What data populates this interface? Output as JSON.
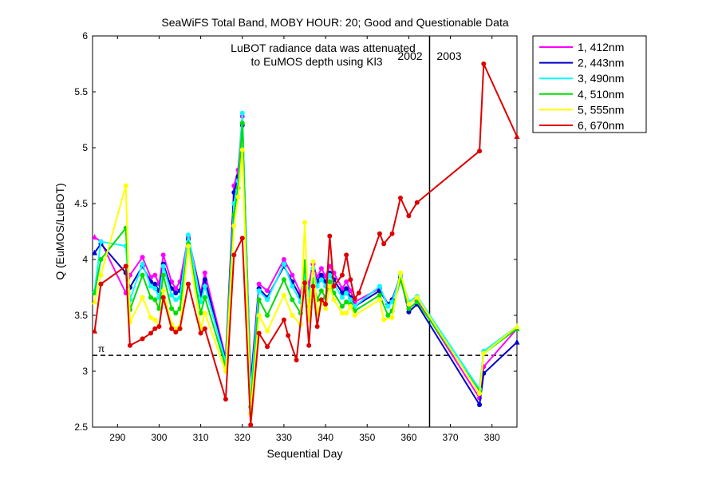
{
  "chart_data": {
    "type": "line",
    "title": "SeaWiFS Total Band,  MOBY HOUR: 20;  Good and Questionable Data",
    "xlabel": "Sequential Day",
    "ylabel": "Q (EuMOS/LuBOT)",
    "xlim": [
      284,
      386
    ],
    "ylim": [
      2.5,
      6
    ],
    "xticks": [
      290,
      300,
      310,
      320,
      330,
      340,
      350,
      360,
      370,
      380
    ],
    "yticks": [
      2.5,
      3,
      3.5,
      4,
      4.5,
      5,
      5.5,
      6
    ],
    "grid": false,
    "legend_position": "outside-top-right",
    "annotations": {
      "note_line1": "LuBOT radiance data was attenuated",
      "note_line2": "to EuMOS depth using Kl3",
      "year_left": "2002",
      "year_right": "2003",
      "pi_label": "π",
      "year_divider_x": 365,
      "pi_reference_y": 3.1416
    },
    "series": [
      {
        "name": "1, 412nm",
        "color": "#ff00ff",
        "points": [
          [
            284.5,
            4.2
          ],
          [
            286,
            4.16
          ],
          [
            292,
            3.7
          ],
          [
            293,
            3.86
          ],
          [
            296,
            4.02
          ],
          [
            298,
            3.84
          ],
          [
            299,
            3.86
          ],
          [
            300,
            3.78
          ],
          [
            301,
            4.04
          ],
          [
            303,
            3.8
          ],
          [
            304,
            3.74
          ],
          [
            305,
            3.8
          ],
          [
            307,
            4.2
          ],
          [
            310,
            3.7
          ],
          [
            311,
            3.88
          ],
          [
            316,
            3.12
          ],
          [
            318,
            4.66
          ],
          [
            319,
            4.8
          ],
          [
            320,
            5.28
          ],
          [
            322,
            2.9
          ],
          [
            324,
            3.78
          ],
          [
            326,
            3.72
          ],
          [
            330,
            4.0
          ],
          [
            332,
            3.86
          ],
          [
            334,
            3.7
          ],
          [
            335,
            3.88
          ],
          [
            336,
            3.78
          ],
          [
            337,
            3.96
          ],
          [
            338,
            3.84
          ],
          [
            339,
            3.92
          ],
          [
            340,
            3.85
          ],
          [
            341,
            3.94
          ],
          [
            342,
            3.88
          ],
          [
            344,
            3.74
          ],
          [
            345,
            3.8
          ],
          [
            346,
            3.72
          ],
          [
            347,
            3.62
          ],
          [
            353,
            3.74
          ],
          [
            355,
            3.6
          ],
          [
            356,
            3.64
          ],
          [
            358,
            3.86
          ],
          [
            360,
            3.62
          ],
          [
            362,
            3.64
          ],
          [
            377,
            2.76
          ],
          [
            378,
            3.04
          ],
          [
            386,
            3.38
          ]
        ]
      },
      {
        "name": "2, 443nm",
        "color": "#0000cc",
        "points": [
          [
            284.5,
            4.06
          ],
          [
            286,
            4.14
          ],
          [
            292,
            3.88
          ],
          [
            293,
            3.75
          ],
          [
            296,
            3.94
          ],
          [
            298,
            3.8
          ],
          [
            299,
            3.78
          ],
          [
            300,
            3.72
          ],
          [
            301,
            3.96
          ],
          [
            303,
            3.74
          ],
          [
            304,
            3.7
          ],
          [
            305,
            3.72
          ],
          [
            307,
            4.18
          ],
          [
            310,
            3.68
          ],
          [
            311,
            3.82
          ],
          [
            316,
            3.1
          ],
          [
            318,
            4.6
          ],
          [
            319,
            4.74
          ],
          [
            320,
            5.2
          ],
          [
            322,
            2.88
          ],
          [
            324,
            3.74
          ],
          [
            326,
            3.66
          ],
          [
            330,
            3.94
          ],
          [
            332,
            3.8
          ],
          [
            334,
            3.66
          ],
          [
            335,
            3.84
          ],
          [
            336,
            3.72
          ],
          [
            337,
            3.9
          ],
          [
            338,
            3.8
          ],
          [
            339,
            3.86
          ],
          [
            340,
            3.8
          ],
          [
            341,
            3.88
          ],
          [
            342,
            3.82
          ],
          [
            344,
            3.7
          ],
          [
            345,
            3.74
          ],
          [
            346,
            3.66
          ],
          [
            347,
            3.58
          ],
          [
            353,
            3.72
          ],
          [
            355,
            3.6
          ],
          [
            356,
            3.64
          ],
          [
            358,
            3.84
          ],
          [
            360,
            3.53
          ],
          [
            362,
            3.6
          ],
          [
            377,
            2.7
          ],
          [
            378,
            2.98
          ],
          [
            386,
            3.26
          ]
        ]
      },
      {
        "name": "3, 490nm",
        "color": "#00ffff",
        "points": [
          [
            284.5,
            3.72
          ],
          [
            286,
            4.16
          ],
          [
            292,
            4.12
          ],
          [
            293,
            3.64
          ],
          [
            296,
            3.96
          ],
          [
            298,
            3.76
          ],
          [
            299,
            3.74
          ],
          [
            300,
            3.66
          ],
          [
            301,
            3.94
          ],
          [
            303,
            3.68
          ],
          [
            304,
            3.64
          ],
          [
            305,
            3.66
          ],
          [
            307,
            4.22
          ],
          [
            310,
            3.62
          ],
          [
            311,
            3.76
          ],
          [
            316,
            3.08
          ],
          [
            318,
            4.5
          ],
          [
            319,
            4.7
          ],
          [
            320,
            5.31
          ],
          [
            322,
            2.8
          ],
          [
            324,
            3.72
          ],
          [
            326,
            3.64
          ],
          [
            330,
            3.96
          ],
          [
            332,
            3.76
          ],
          [
            334,
            3.62
          ],
          [
            335,
            3.86
          ],
          [
            336,
            3.68
          ],
          [
            337,
            3.92
          ],
          [
            338,
            3.76
          ],
          [
            339,
            3.82
          ],
          [
            340,
            3.76
          ],
          [
            341,
            3.86
          ],
          [
            342,
            3.78
          ],
          [
            344,
            3.66
          ],
          [
            345,
            3.7
          ],
          [
            346,
            3.64
          ],
          [
            347,
            3.58
          ],
          [
            353,
            3.76
          ],
          [
            355,
            3.58
          ],
          [
            356,
            3.62
          ],
          [
            358,
            3.86
          ],
          [
            360,
            3.62
          ],
          [
            362,
            3.67
          ],
          [
            377,
            2.84
          ],
          [
            378,
            3.18
          ],
          [
            386,
            3.4
          ]
        ]
      },
      {
        "name": "4, 510nm",
        "color": "#00dd00",
        "points": [
          [
            284.5,
            3.7
          ],
          [
            286,
            4.0
          ],
          [
            292,
            4.28
          ],
          [
            293,
            3.55
          ],
          [
            296,
            3.86
          ],
          [
            298,
            3.66
          ],
          [
            299,
            3.64
          ],
          [
            300,
            3.56
          ],
          [
            301,
            3.86
          ],
          [
            303,
            3.56
          ],
          [
            304,
            3.52
          ],
          [
            305,
            3.56
          ],
          [
            307,
            4.14
          ],
          [
            310,
            3.52
          ],
          [
            311,
            3.66
          ],
          [
            316,
            3.04
          ],
          [
            318,
            4.4
          ],
          [
            319,
            4.64
          ],
          [
            320,
            5.22
          ],
          [
            322,
            2.68
          ],
          [
            324,
            3.64
          ],
          [
            326,
            3.5
          ],
          [
            330,
            3.82
          ],
          [
            332,
            3.64
          ],
          [
            334,
            3.52
          ],
          [
            335,
            3.98
          ],
          [
            336,
            3.58
          ],
          [
            337,
            3.82
          ],
          [
            338,
            3.64
          ],
          [
            339,
            3.72
          ],
          [
            340,
            3.66
          ],
          [
            341,
            3.8
          ],
          [
            342,
            3.7
          ],
          [
            344,
            3.58
          ],
          [
            345,
            3.62
          ],
          [
            346,
            3.6
          ],
          [
            347,
            3.54
          ],
          [
            353,
            3.68
          ],
          [
            355,
            3.5
          ],
          [
            356,
            3.54
          ],
          [
            358,
            3.82
          ],
          [
            360,
            3.56
          ],
          [
            362,
            3.62
          ],
          [
            377,
            2.82
          ],
          [
            378,
            3.16
          ],
          [
            386,
            3.38
          ]
        ]
      },
      {
        "name": "5, 555nm",
        "color": "#ffff00",
        "points": [
          [
            284.5,
            3.62
          ],
          [
            286,
            3.86
          ],
          [
            292,
            4.66
          ],
          [
            293,
            3.44
          ],
          [
            296,
            3.66
          ],
          [
            298,
            3.48
          ],
          [
            299,
            3.46
          ],
          [
            300,
            3.4
          ],
          [
            301,
            3.72
          ],
          [
            303,
            3.42
          ],
          [
            304,
            3.38
          ],
          [
            305,
            3.4
          ],
          [
            307,
            4.12
          ],
          [
            310,
            3.38
          ],
          [
            311,
            3.52
          ],
          [
            316,
            3.0
          ],
          [
            318,
            4.3
          ],
          [
            319,
            4.56
          ],
          [
            320,
            4.98
          ],
          [
            322,
            2.62
          ],
          [
            324,
            3.5
          ],
          [
            326,
            3.36
          ],
          [
            330,
            3.68
          ],
          [
            332,
            3.5
          ],
          [
            334,
            3.42
          ],
          [
            335,
            4.33
          ],
          [
            336,
            3.46
          ],
          [
            337,
            3.98
          ],
          [
            338,
            3.52
          ],
          [
            339,
            3.62
          ],
          [
            340,
            3.56
          ],
          [
            341,
            3.76
          ],
          [
            342,
            3.64
          ],
          [
            344,
            3.52
          ],
          [
            345,
            3.52
          ],
          [
            346,
            3.58
          ],
          [
            347,
            3.5
          ],
          [
            353,
            3.64
          ],
          [
            354,
            3.46
          ],
          [
            356,
            3.48
          ],
          [
            358,
            3.88
          ],
          [
            360,
            3.6
          ],
          [
            362,
            3.66
          ],
          [
            377,
            2.8
          ],
          [
            378,
            3.16
          ],
          [
            386,
            3.4
          ]
        ]
      },
      {
        "name": "6, 670nm",
        "color": "#dd0000",
        "points": [
          [
            284.5,
            3.36
          ],
          [
            286,
            3.78
          ],
          [
            292,
            3.94
          ],
          [
            293,
            3.23
          ],
          [
            296,
            3.29
          ],
          [
            298,
            3.34
          ],
          [
            299,
            3.38
          ],
          [
            300,
            3.4
          ],
          [
            301,
            3.66
          ],
          [
            303,
            3.38
          ],
          [
            304,
            3.35
          ],
          [
            305,
            3.38
          ],
          [
            307,
            3.78
          ],
          [
            310,
            3.34
          ],
          [
            311,
            3.38
          ],
          [
            316,
            2.75
          ],
          [
            318,
            4.04
          ],
          [
            320,
            4.19
          ],
          [
            322,
            2.52
          ],
          [
            324,
            3.34
          ],
          [
            326,
            3.22
          ],
          [
            330,
            3.46
          ],
          [
            331,
            3.32
          ],
          [
            333,
            3.1
          ],
          [
            335,
            3.79
          ],
          [
            336,
            3.23
          ],
          [
            337,
            3.76
          ],
          [
            338,
            3.4
          ],
          [
            339,
            3.64
          ],
          [
            340,
            3.6
          ],
          [
            341,
            4.21
          ],
          [
            342,
            3.76
          ],
          [
            344,
            3.86
          ],
          [
            345,
            4.04
          ],
          [
            346,
            3.82
          ],
          [
            347,
            3.65
          ],
          [
            348,
            3.7
          ],
          [
            353,
            4.23
          ],
          [
            354,
            4.14
          ],
          [
            356,
            4.23
          ],
          [
            358,
            4.55
          ],
          [
            360,
            4.39
          ],
          [
            362,
            4.51
          ],
          [
            377,
            4.97
          ],
          [
            378,
            5.75
          ],
          [
            386,
            5.1
          ]
        ]
      }
    ]
  }
}
